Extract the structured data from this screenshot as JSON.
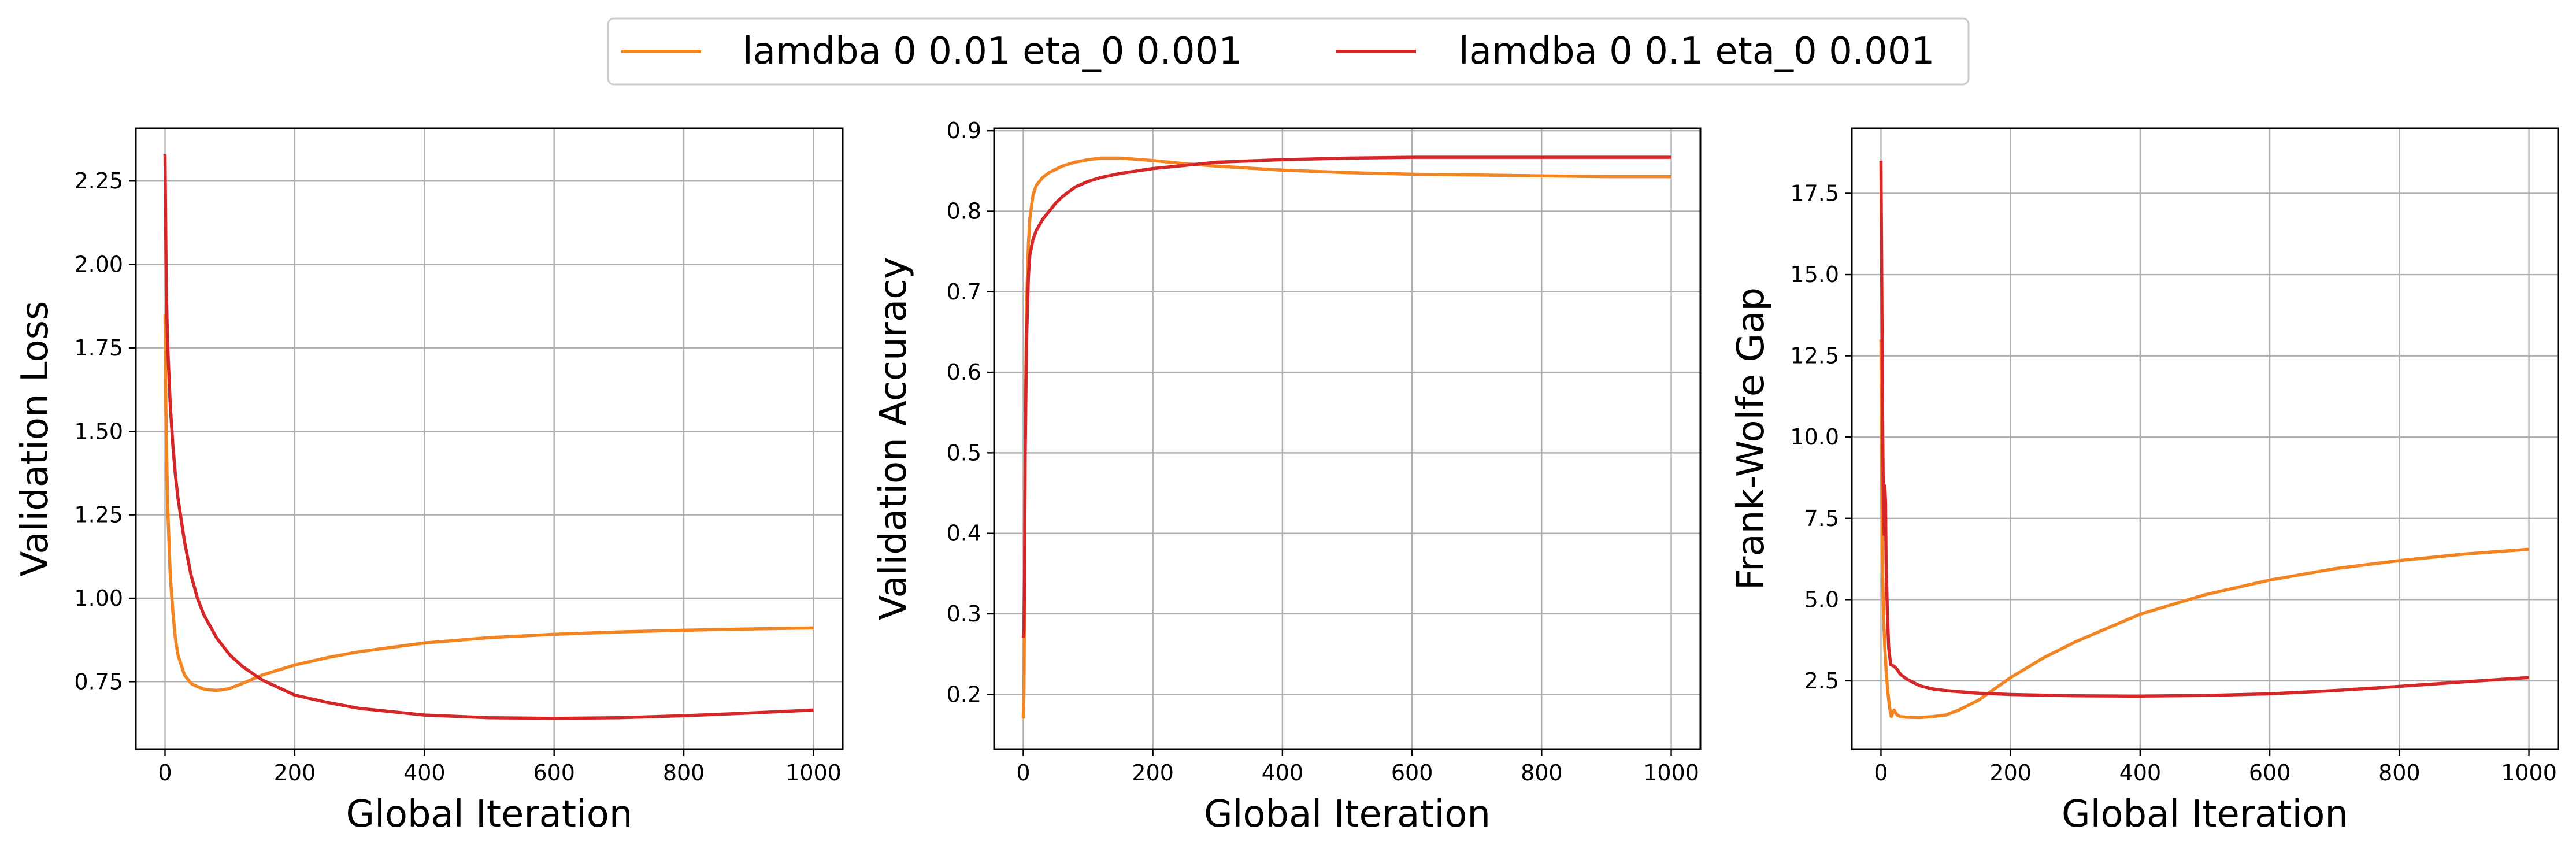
{
  "legend": {
    "items": [
      {
        "label": "lamdba 0 0.01 eta_0 0.001",
        "color": "#f28522"
      },
      {
        "label": "lamdba 0 0.1 eta_0 0.001",
        "color": "#d62728"
      }
    ],
    "placement": "top-center"
  },
  "chart_data": [
    {
      "type": "line",
      "xlabel": "Global Iteration",
      "ylabel": "Validation Loss",
      "xlim": [
        -45,
        1045
      ],
      "ylim": [
        0.548,
        2.408
      ],
      "xticks": [
        0,
        200,
        400,
        600,
        800,
        1000
      ],
      "xtick_labels": [
        "0",
        "200",
        "400",
        "600",
        "800",
        "1000"
      ],
      "yticks": [
        0.75,
        1.0,
        1.25,
        1.5,
        1.75,
        2.0,
        2.25
      ],
      "ytick_labels": [
        "0.75",
        "1.00",
        "1.25",
        "1.50",
        "1.75",
        "2.00",
        "2.25"
      ],
      "grid": true,
      "series": [
        {
          "name": "lamdba 0 0.01 eta_0 0.001",
          "color": "#f28522",
          "x": [
            0,
            1,
            2,
            4,
            8,
            12,
            16,
            20,
            30,
            40,
            50,
            60,
            70,
            80,
            90,
            100,
            120,
            150,
            200,
            250,
            300,
            400,
            500,
            600,
            700,
            800,
            900,
            1000
          ],
          "y": [
            1.85,
            1.62,
            1.48,
            1.28,
            1.07,
            0.96,
            0.88,
            0.83,
            0.77,
            0.745,
            0.735,
            0.728,
            0.725,
            0.724,
            0.726,
            0.73,
            0.745,
            0.77,
            0.8,
            0.822,
            0.84,
            0.866,
            0.882,
            0.892,
            0.899,
            0.904,
            0.908,
            0.911
          ]
        },
        {
          "name": "lamdba 0 0.1 eta_0 0.001",
          "color": "#d62728",
          "x": [
            0,
            1,
            2,
            4,
            8,
            12,
            16,
            20,
            30,
            40,
            50,
            60,
            80,
            100,
            120,
            150,
            200,
            250,
            300,
            400,
            500,
            600,
            700,
            800,
            900,
            1000
          ],
          "y": [
            2.33,
            2.12,
            1.92,
            1.76,
            1.58,
            1.46,
            1.37,
            1.3,
            1.17,
            1.07,
            1.0,
            0.95,
            0.88,
            0.83,
            0.795,
            0.755,
            0.71,
            0.688,
            0.67,
            0.65,
            0.642,
            0.64,
            0.642,
            0.648,
            0.656,
            0.665
          ]
        }
      ]
    },
    {
      "type": "line",
      "xlabel": "Global Iteration",
      "ylabel": "Validation Accuracy",
      "xlim": [
        -45,
        1045
      ],
      "ylim": [
        0.132,
        0.903
      ],
      "xticks": [
        0,
        200,
        400,
        600,
        800,
        1000
      ],
      "xtick_labels": [
        "0",
        "200",
        "400",
        "600",
        "800",
        "1000"
      ],
      "yticks": [
        0.2,
        0.3,
        0.4,
        0.5,
        0.6,
        0.7,
        0.8,
        0.9
      ],
      "ytick_labels": [
        "0.2",
        "0.3",
        "0.4",
        "0.5",
        "0.6",
        "0.7",
        "0.8",
        "0.9"
      ],
      "grid": true,
      "series": [
        {
          "name": "lamdba 0 0.01 eta_0 0.001",
          "color": "#f28522",
          "x": [
            0,
            1,
            2,
            3,
            5,
            8,
            10,
            15,
            20,
            30,
            40,
            50,
            60,
            80,
            100,
            120,
            150,
            200,
            250,
            300,
            400,
            500,
            600,
            700,
            800,
            900,
            1000
          ],
          "y": [
            0.17,
            0.2,
            0.33,
            0.52,
            0.68,
            0.76,
            0.79,
            0.82,
            0.832,
            0.842,
            0.848,
            0.852,
            0.856,
            0.861,
            0.864,
            0.866,
            0.866,
            0.863,
            0.859,
            0.856,
            0.851,
            0.848,
            0.846,
            0.845,
            0.844,
            0.843,
            0.843
          ]
        },
        {
          "name": "lamdba 0 0.1 eta_0 0.001",
          "color": "#d62728",
          "x": [
            0,
            1,
            2,
            3,
            5,
            8,
            10,
            15,
            20,
            30,
            40,
            50,
            60,
            80,
            100,
            120,
            150,
            200,
            250,
            300,
            400,
            500,
            600,
            700,
            800,
            900,
            1000
          ],
          "y": [
            0.27,
            0.28,
            0.35,
            0.5,
            0.64,
            0.72,
            0.745,
            0.765,
            0.776,
            0.79,
            0.8,
            0.81,
            0.818,
            0.83,
            0.837,
            0.842,
            0.847,
            0.853,
            0.857,
            0.861,
            0.864,
            0.866,
            0.867,
            0.867,
            0.867,
            0.867,
            0.867
          ]
        }
      ]
    },
    {
      "type": "line",
      "xlabel": "Global Iteration",
      "ylabel": "Frank-Wolfe Gap",
      "xlim": [
        -45,
        1045
      ],
      "ylim": [
        0.4,
        19.5
      ],
      "xticks": [
        0,
        200,
        400,
        600,
        800,
        1000
      ],
      "xtick_labels": [
        "0",
        "200",
        "400",
        "600",
        "800",
        "1000"
      ],
      "yticks": [
        2.5,
        5.0,
        7.5,
        10.0,
        12.5,
        15.0,
        17.5
      ],
      "ytick_labels": [
        "2.5",
        "5.0",
        "7.5",
        "10.0",
        "12.5",
        "15.0",
        "17.5"
      ],
      "grid": true,
      "series": [
        {
          "name": "lamdba 0 0.01 eta_0 0.001",
          "color": "#f28522",
          "x": [
            0,
            1,
            2,
            4,
            6,
            8,
            10,
            12,
            14,
            16,
            20,
            25,
            30,
            40,
            60,
            80,
            100,
            120,
            150,
            200,
            250,
            300,
            400,
            500,
            600,
            700,
            800,
            900,
            1000
          ],
          "y": [
            13.0,
            9.0,
            6.5,
            4.5,
            3.5,
            2.8,
            2.3,
            1.9,
            1.6,
            1.4,
            1.6,
            1.45,
            1.4,
            1.38,
            1.37,
            1.4,
            1.45,
            1.6,
            1.9,
            2.6,
            3.2,
            3.7,
            4.55,
            5.15,
            5.6,
            5.95,
            6.2,
            6.4,
            6.55
          ]
        },
        {
          "name": "lamdba 0 0.1 eta_0 0.001",
          "color": "#d62728",
          "x": [
            0,
            1,
            2,
            3,
            4,
            5,
            6,
            7,
            8,
            10,
            12,
            15,
            20,
            25,
            30,
            40,
            50,
            60,
            80,
            100,
            150,
            200,
            300,
            400,
            500,
            600,
            700,
            800,
            900,
            1000
          ],
          "y": [
            18.5,
            15.5,
            12.0,
            9.5,
            7.5,
            7.0,
            8.5,
            8.0,
            6.0,
            4.5,
            3.5,
            3.0,
            2.95,
            2.85,
            2.7,
            2.55,
            2.45,
            2.35,
            2.25,
            2.2,
            2.12,
            2.08,
            2.04,
            2.03,
            2.05,
            2.1,
            2.2,
            2.33,
            2.47,
            2.6
          ]
        }
      ]
    }
  ]
}
